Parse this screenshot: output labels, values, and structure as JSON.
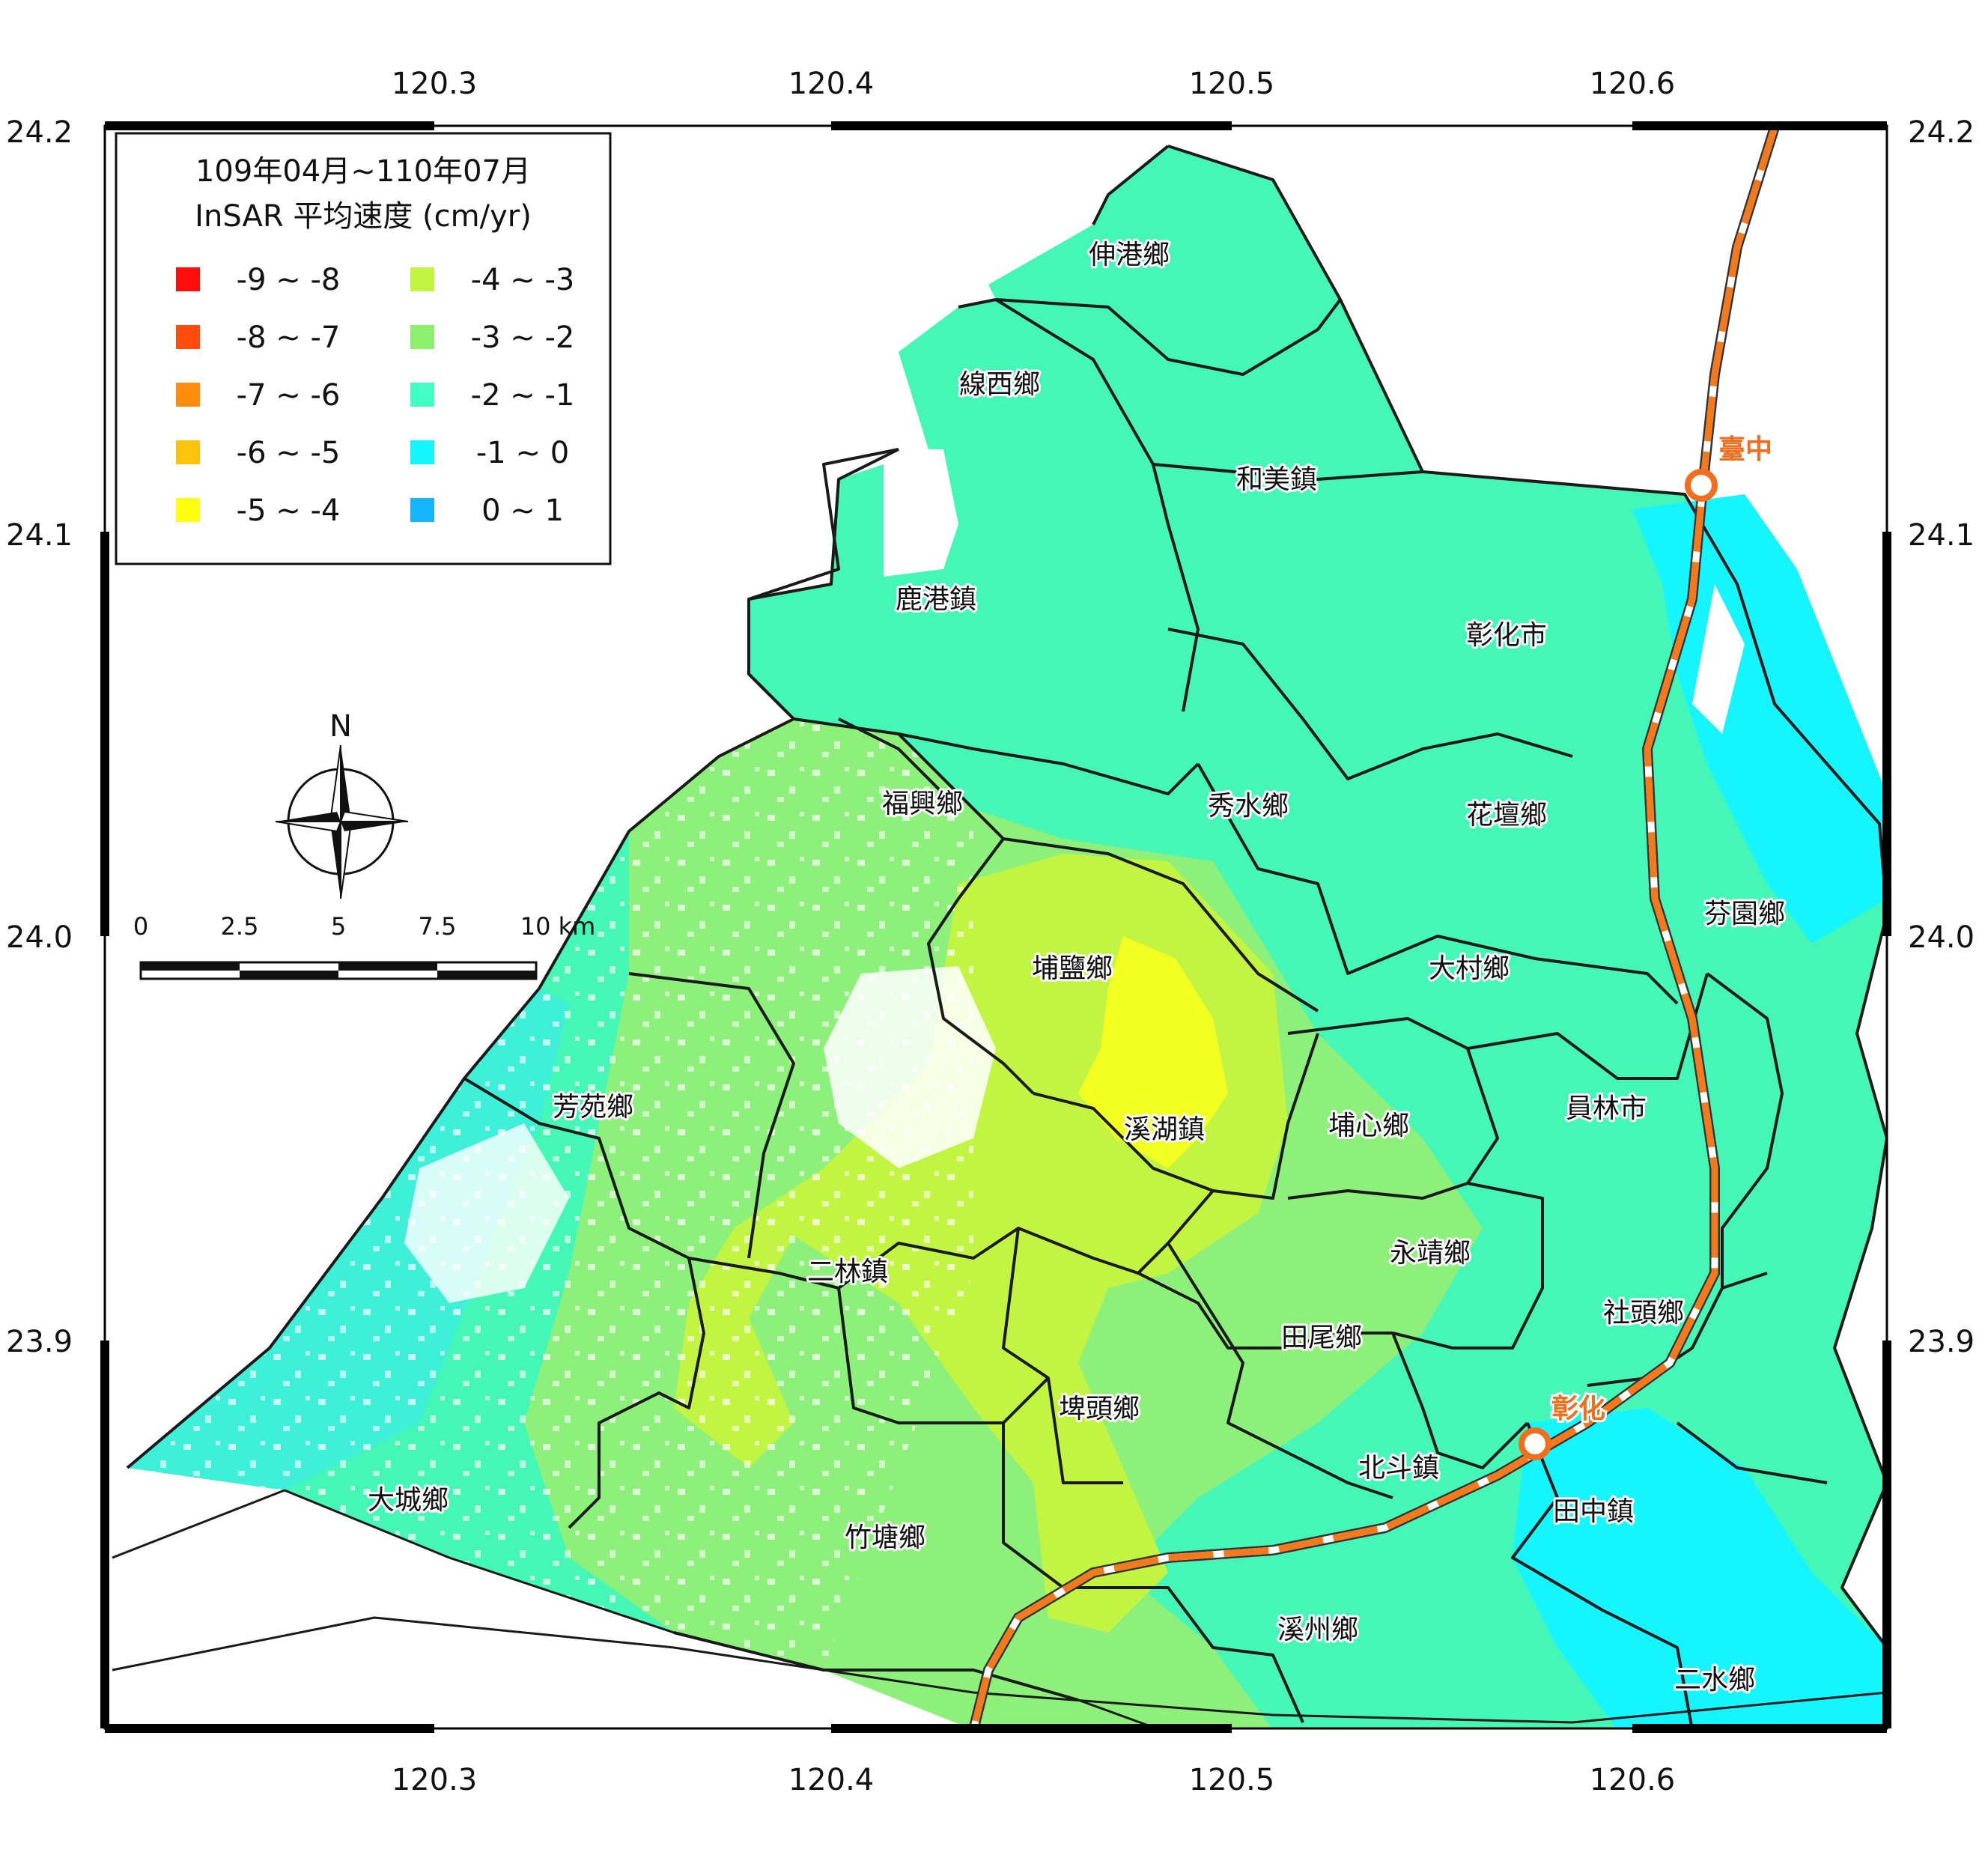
{
  "legend": {
    "title_line1": "109年04月~110年07月",
    "title_line2": "InSAR 平均速度 (cm/yr)",
    "items": [
      {
        "label": "-9 ~ -8",
        "color": "#ff0d0d"
      },
      {
        "label": "-8 ~ -7",
        "color": "#ff4d0d"
      },
      {
        "label": "-7 ~ -6",
        "color": "#ff8c0d"
      },
      {
        "label": "-6 ~ -5",
        "color": "#ffc20d"
      },
      {
        "label": "-5 ~ -4",
        "color": "#ffff0d"
      },
      {
        "label": "-4 ~ -3",
        "color": "#c2f542"
      },
      {
        "label": "-3 ~ -2",
        "color": "#8cf06e"
      },
      {
        "label": "-2 ~ -1",
        "color": "#42ffc2"
      },
      {
        "label": "-1 ~ 0",
        "color": "#14f5ff"
      },
      {
        "label": "0 ~ 1",
        "color": "#14b4ff"
      }
    ]
  },
  "axes": {
    "lon_ticks": [
      "120.3",
      "120.4",
      "120.5",
      "120.6"
    ],
    "lat_ticks": [
      "24.2",
      "24.1",
      "24.0",
      "23.9"
    ]
  },
  "north_label": "N",
  "scalebar": {
    "labels": [
      "0",
      "2.5",
      "5",
      "7.5",
      "10 km"
    ]
  },
  "townships": [
    {
      "name": "伸港鄉"
    },
    {
      "name": "線西鄉"
    },
    {
      "name": "和美鎮"
    },
    {
      "name": "鹿港鎮"
    },
    {
      "name": "彰化市"
    },
    {
      "name": "福興鄉"
    },
    {
      "name": "秀水鄉"
    },
    {
      "name": "花壇鄉"
    },
    {
      "name": "芬園鄉"
    },
    {
      "name": "埔鹽鄉"
    },
    {
      "name": "大村鄉"
    },
    {
      "name": "芳苑鄉"
    },
    {
      "name": "溪湖鎮"
    },
    {
      "name": "埔心鄉"
    },
    {
      "name": "員林市"
    },
    {
      "name": "永靖鄉"
    },
    {
      "name": "二林鎮"
    },
    {
      "name": "社頭鄉"
    },
    {
      "name": "田尾鄉"
    },
    {
      "name": "埤頭鄉"
    },
    {
      "name": "大城鄉"
    },
    {
      "name": "北斗鎮"
    },
    {
      "name": "田中鎮"
    },
    {
      "name": "竹塘鄉"
    },
    {
      "name": "溪州鄉"
    },
    {
      "name": "二水鄉"
    }
  ],
  "stations": [
    {
      "name": "臺中"
    },
    {
      "name": "彰化"
    }
  ]
}
